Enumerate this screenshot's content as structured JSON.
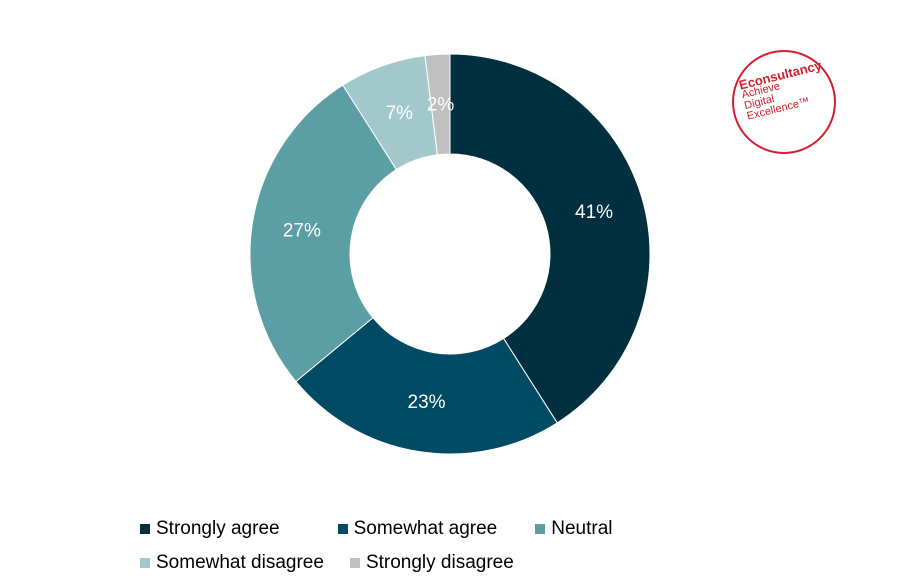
{
  "chart_data": {
    "type": "pie",
    "donut": true,
    "categories": [
      "Strongly agree",
      "Somewhat agree",
      "Neutral",
      "Somewhat disagree",
      "Strongly disagree"
    ],
    "values": [
      41,
      23,
      27,
      7,
      2
    ],
    "data_labels": [
      "41%",
      "23%",
      "27%",
      "7%",
      "2%"
    ],
    "colors": [
      "#00303f",
      "#004a63",
      "#5b9ea4",
      "#a3c8cb",
      "#bfbfbf"
    ],
    "label_colors": [
      "#ffffff",
      "#ffffff",
      "#ffffff",
      "#ffffff",
      "#ffffff"
    ],
    "legend_position": "bottom"
  },
  "logo": {
    "brand": "Econsultancy",
    "tagline": [
      "Achieve",
      "Digital",
      "Excellence™"
    ]
  }
}
